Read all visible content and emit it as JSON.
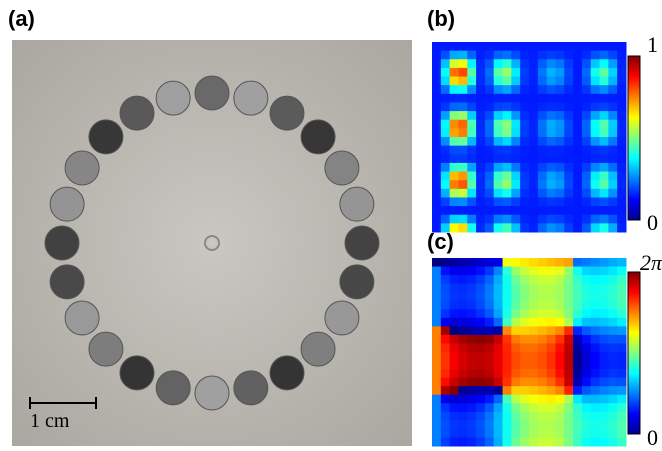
{
  "panels": [
    {
      "label": "(a)",
      "scale_bar": "1 cm"
    },
    {
      "label": "(b)",
      "colorbar": {
        "max": "1",
        "min": "0"
      }
    },
    {
      "label": "(c)",
      "colorbar": {
        "max": "2π",
        "min": "0"
      }
    }
  ]
}
